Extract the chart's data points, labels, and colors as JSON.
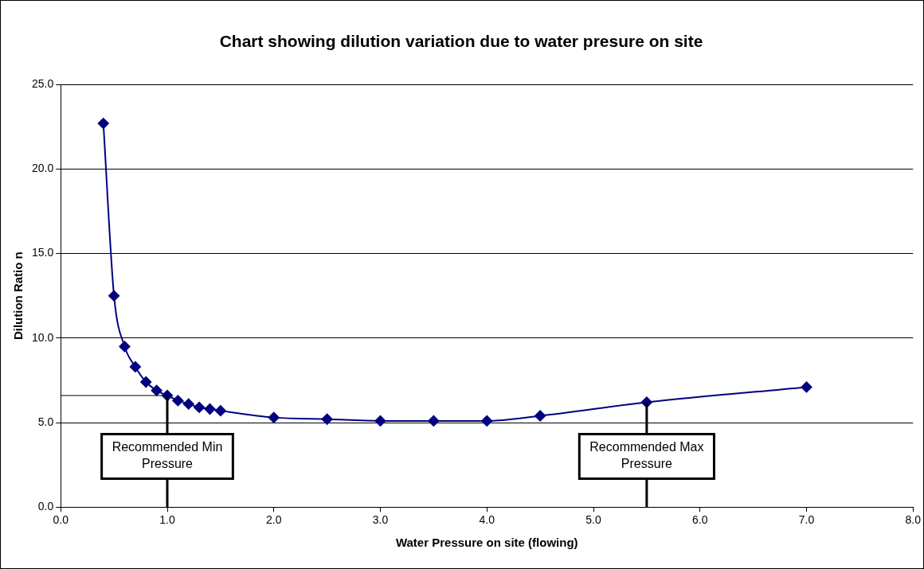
{
  "chart_data": {
    "type": "line",
    "title": "Chart showing dilution variation due to water presure on site",
    "xlabel": "Water Pressure on site (flowing)",
    "ylabel": "Dilution Ratio n",
    "x": [
      0.4,
      0.5,
      0.6,
      0.7,
      0.8,
      0.9,
      1.0,
      1.1,
      1.2,
      1.3,
      1.4,
      1.5,
      2.0,
      2.5,
      3.0,
      3.5,
      4.0,
      4.5,
      5.5,
      7.0
    ],
    "series": [
      {
        "color": "#000080",
        "values": [
          22.7,
          12.5,
          9.5,
          8.3,
          7.4,
          6.9,
          6.6,
          6.3,
          6.1,
          5.9,
          5.8,
          5.7,
          5.3,
          5.2,
          5.1,
          5.1,
          5.1,
          5.4,
          6.2,
          7.1
        ]
      }
    ],
    "xlim": [
      0,
      8
    ],
    "xticks": [
      {
        "value": 0,
        "label": "0.0"
      },
      {
        "value": 1,
        "label": "1.0"
      },
      {
        "value": 2,
        "label": "2.0"
      },
      {
        "value": 3,
        "label": "3.0"
      },
      {
        "value": 4,
        "label": "4.0"
      },
      {
        "value": 5,
        "label": "5.0"
      },
      {
        "value": 6,
        "label": "6.0"
      },
      {
        "value": 7,
        "label": "7.0"
      },
      {
        "value": 8,
        "label": "8.0"
      }
    ],
    "ylim": [
      0,
      25
    ],
    "yticks": [
      {
        "value": 0,
        "label": "0.0"
      },
      {
        "value": 5,
        "label": "5.0"
      },
      {
        "value": 10,
        "label": "10.0"
      },
      {
        "value": 15,
        "label": "15.0"
      },
      {
        "value": 20,
        "label": "20.0"
      },
      {
        "value": 25,
        "label": "25.0"
      }
    ],
    "ref_lines": [
      {
        "axis": "x",
        "value": 1.0,
        "label": "Recommended Min Pressure"
      },
      {
        "axis": "x",
        "value": 5.5,
        "label": "Recommended Max Pressure"
      },
      {
        "axis": "y",
        "value": 6.6
      }
    ],
    "grid": "y",
    "legend": false,
    "marker": "diamond",
    "line_style": "solid"
  }
}
